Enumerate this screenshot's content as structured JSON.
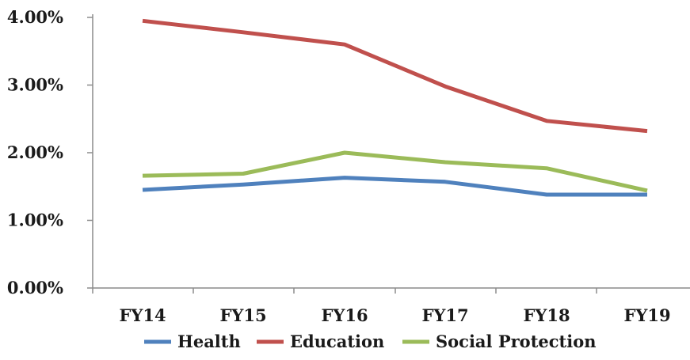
{
  "chart_data": {
    "type": "line",
    "title": "",
    "xlabel": "",
    "ylabel": "",
    "categories": [
      "FY14",
      "FY15",
      "FY16",
      "FY17",
      "FY18",
      "FY19"
    ],
    "ylim": [
      0,
      4
    ],
    "yticks": [
      0,
      1,
      2,
      3,
      4
    ],
    "ytick_labels": [
      "0.00%",
      "1.00%",
      "2.00%",
      "3.00%",
      "4.00%"
    ],
    "grid": false,
    "legend_position": "bottom",
    "series": [
      {
        "name": "Health",
        "color": "#4f81bd",
        "values": [
          1.45,
          1.53,
          1.63,
          1.57,
          1.38,
          1.38
        ]
      },
      {
        "name": "Education",
        "color": "#c0504d",
        "values": [
          3.95,
          3.78,
          3.6,
          2.98,
          2.47,
          2.32
        ]
      },
      {
        "name": "Social Protection",
        "color": "#9bbb59",
        "values": [
          1.66,
          1.69,
          2.0,
          1.86,
          1.77,
          1.44
        ]
      }
    ]
  }
}
